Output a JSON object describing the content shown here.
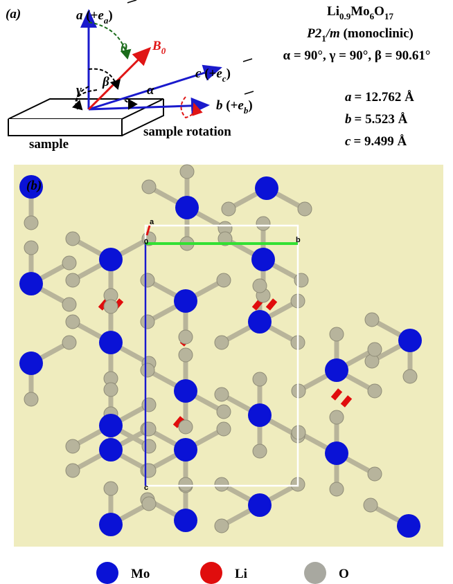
{
  "panel_a": {
    "label": "(a)",
    "axis_a": {
      "symbol": "a",
      "open": "(+",
      "vector": "e",
      "index": "a",
      "close": ")"
    },
    "axis_b": {
      "symbol": "b",
      "open": "(+",
      "vector": "e",
      "index": "b",
      "close": ")"
    },
    "axis_c": {
      "symbol": "c",
      "open": "(+",
      "vector": "e",
      "index": "c",
      "close": ")"
    },
    "field": {
      "symbol": "B",
      "subscript": "0"
    },
    "theta": "θ",
    "beta": "β",
    "gamma": "γ",
    "alpha": "α",
    "sample": "sample",
    "rotation": "sample rotation",
    "formula": [
      "Li",
      "0.9",
      "Mo",
      "6",
      "O",
      "17"
    ],
    "space_group": {
      "symbol": "P2",
      "subscript": "1",
      "rest": "/m",
      "note": "(monoclinic)"
    },
    "angles": "α = 90°, γ = 90°, β = 90.61°",
    "lattice": [
      {
        "symbol": "a",
        "value": "= 12.762 Å"
      },
      {
        "symbol": "b",
        "value": "= 5.523 Å"
      },
      {
        "symbol": "c",
        "value": "= 9.499 Å"
      }
    ]
  },
  "panel_b": {
    "label": "(b)",
    "cell_labels": {
      "a": "a",
      "origin": "0",
      "b": "b",
      "c": "c"
    },
    "legend": [
      {
        "label": "Mo",
        "color": "#0a12d6"
      },
      {
        "label": "Li",
        "color": "#e00d0d"
      },
      {
        "label": "O",
        "color": "#a8a8a0"
      }
    ]
  }
}
